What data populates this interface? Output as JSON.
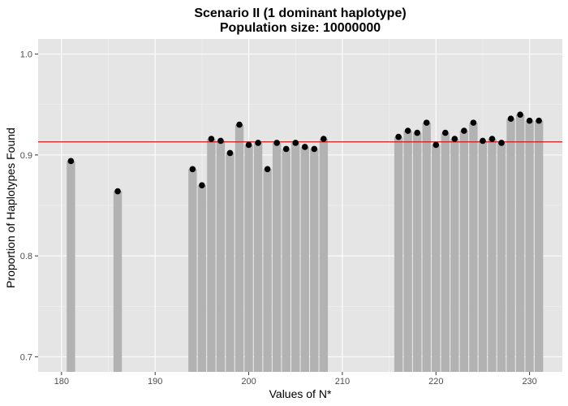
{
  "chart_data": {
    "type": "bar",
    "title_line1": "Scenario II (1 dominant haplotype)",
    "title_line2": "Population size: 10000000",
    "xlabel": "Values of N*",
    "ylabel": "Proportion of Haplotypes Found",
    "xlim": [
      177.5,
      233.5
    ],
    "ylim": [
      0.685,
      1.015
    ],
    "x_ticks": [
      180,
      190,
      200,
      210,
      220,
      230
    ],
    "x_tick_labels": [
      "180",
      "190",
      "200",
      "210",
      "220",
      "230"
    ],
    "y_ticks": [
      0.7,
      0.8,
      0.9,
      1.0
    ],
    "y_tick_labels": [
      "0.7",
      "0.8",
      "0.9",
      "1.0"
    ],
    "grid": true,
    "reference_line": {
      "y": 0.913,
      "color": "#ff0000"
    },
    "bar_color": "#b2b2b2",
    "point_color": "#000000",
    "panel_color": "#e5e5e5",
    "x": [
      181,
      186,
      194,
      195,
      196,
      197,
      198,
      199,
      200,
      201,
      202,
      203,
      204,
      205,
      206,
      207,
      208,
      216,
      217,
      218,
      219,
      220,
      221,
      222,
      223,
      224,
      225,
      226,
      227,
      228,
      229,
      230,
      231
    ],
    "values": [
      0.894,
      0.864,
      0.886,
      0.87,
      0.916,
      0.914,
      0.902,
      0.93,
      0.91,
      0.912,
      0.886,
      0.912,
      0.906,
      0.912,
      0.908,
      0.906,
      0.916,
      0.918,
      0.924,
      0.922,
      0.932,
      0.91,
      0.922,
      0.916,
      0.924,
      0.932,
      0.914,
      0.916,
      0.912,
      0.936,
      0.94,
      0.934,
      0.934
    ]
  }
}
